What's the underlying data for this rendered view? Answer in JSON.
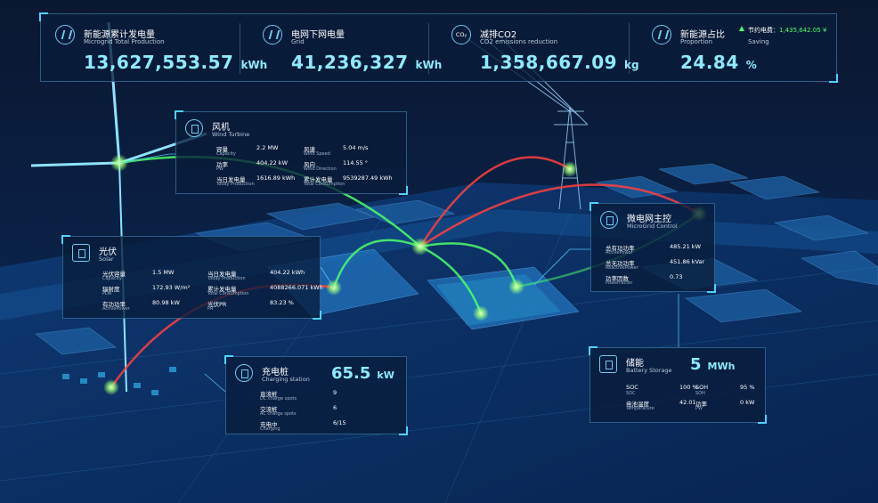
{
  "kpis": [
    {
      "title": "新能源累计发电量",
      "subtitle": "Microgrid Total Production",
      "value": "13,627,553.57",
      "unit": "kWh"
    },
    {
      "title": "电网下网电量",
      "subtitle": "Grid",
      "value": "41,236,327",
      "unit": "kWh"
    },
    {
      "title": "减排CO2",
      "subtitle": "CO2 emissions reduction",
      "value": "1,358,667.09",
      "unit": "kg",
      "icon": "CO₂"
    },
    {
      "title": "新能源占比",
      "subtitle": "Proportion",
      "value": "24.84",
      "unit": "%",
      "saving_label": "节约电费：",
      "saving_value": "1,435,642.05 ¥",
      "saving_subtitle": "Saving"
    }
  ],
  "panels": {
    "wind": {
      "title": "风机",
      "subtitle": "Wind Turbine",
      "rows": [
        {
          "label": "容量",
          "sub": "Capacity",
          "value": "2.2 MW"
        },
        {
          "label": "风速",
          "sub": "Wind Speed",
          "value": "5.04 m/s"
        },
        {
          "label": "功率",
          "sub": "PW",
          "value": "404.22 kW"
        },
        {
          "label": "风向",
          "sub": "Wind Direction",
          "value": "114.55 °"
        },
        {
          "label": "当日发电量",
          "sub": "Today Production",
          "value": "1616.89 kWh"
        },
        {
          "label": "累计发电量",
          "sub": "Total Consumption",
          "value": "9539287.49 kWh"
        }
      ]
    },
    "solar": {
      "title": "光伏",
      "subtitle": "Solar",
      "rows": [
        {
          "label": "光伏容量",
          "sub": "Capacity",
          "value": "1.5 MW"
        },
        {
          "label": "辐射度",
          "sub": "PDA",
          "value": "172.93 W/m²"
        },
        {
          "label": "有功功率",
          "sub": "ActivePower",
          "value": "80.98 kW"
        },
        {
          "label": "当日发电量",
          "sub": "Today Production",
          "value": "404.22 kWh"
        },
        {
          "label": "累计发电量",
          "sub": "Total Consumption",
          "value": "4088266.071 kWh"
        },
        {
          "label": "光伏PR",
          "sub": "PR",
          "value": "83.23 %"
        }
      ]
    },
    "charging": {
      "title": "充电桩",
      "subtitle": "Charging station",
      "headline": "65.5",
      "unit": "kW",
      "rows": [
        {
          "label": "直流桩",
          "sub": "DC charge spots",
          "value": "9"
        },
        {
          "label": "交流桩",
          "sub": "AC charge spots",
          "value": "6"
        },
        {
          "label": "充电中",
          "sub": "Charging",
          "value": "6/15"
        }
      ]
    },
    "control": {
      "title": "微电网主控",
      "subtitle": "MicroGrid Control",
      "rows": [
        {
          "label": "总有功功率",
          "sub": "ActivePower",
          "value": "485.21 kW"
        },
        {
          "label": "总无功功率",
          "sub": "ReactivePower",
          "value": "451.86 kVar"
        },
        {
          "label": "功率因数",
          "sub": "PowerFactor",
          "value": "0.73"
        }
      ]
    },
    "battery": {
      "title": "储能",
      "subtitle": "Battery Storage",
      "headline": "5",
      "unit": "MWh",
      "rows": [
        {
          "label": "SOC",
          "sub": "SOC",
          "value": "100 %"
        },
        {
          "label": "SOH",
          "sub": "SOH",
          "value": "95 %"
        },
        {
          "label": "电池温度",
          "sub": "Temperature",
          "value": "42.01"
        },
        {
          "label": "功率",
          "sub": "PW",
          "value": "0 kW"
        }
      ]
    }
  }
}
